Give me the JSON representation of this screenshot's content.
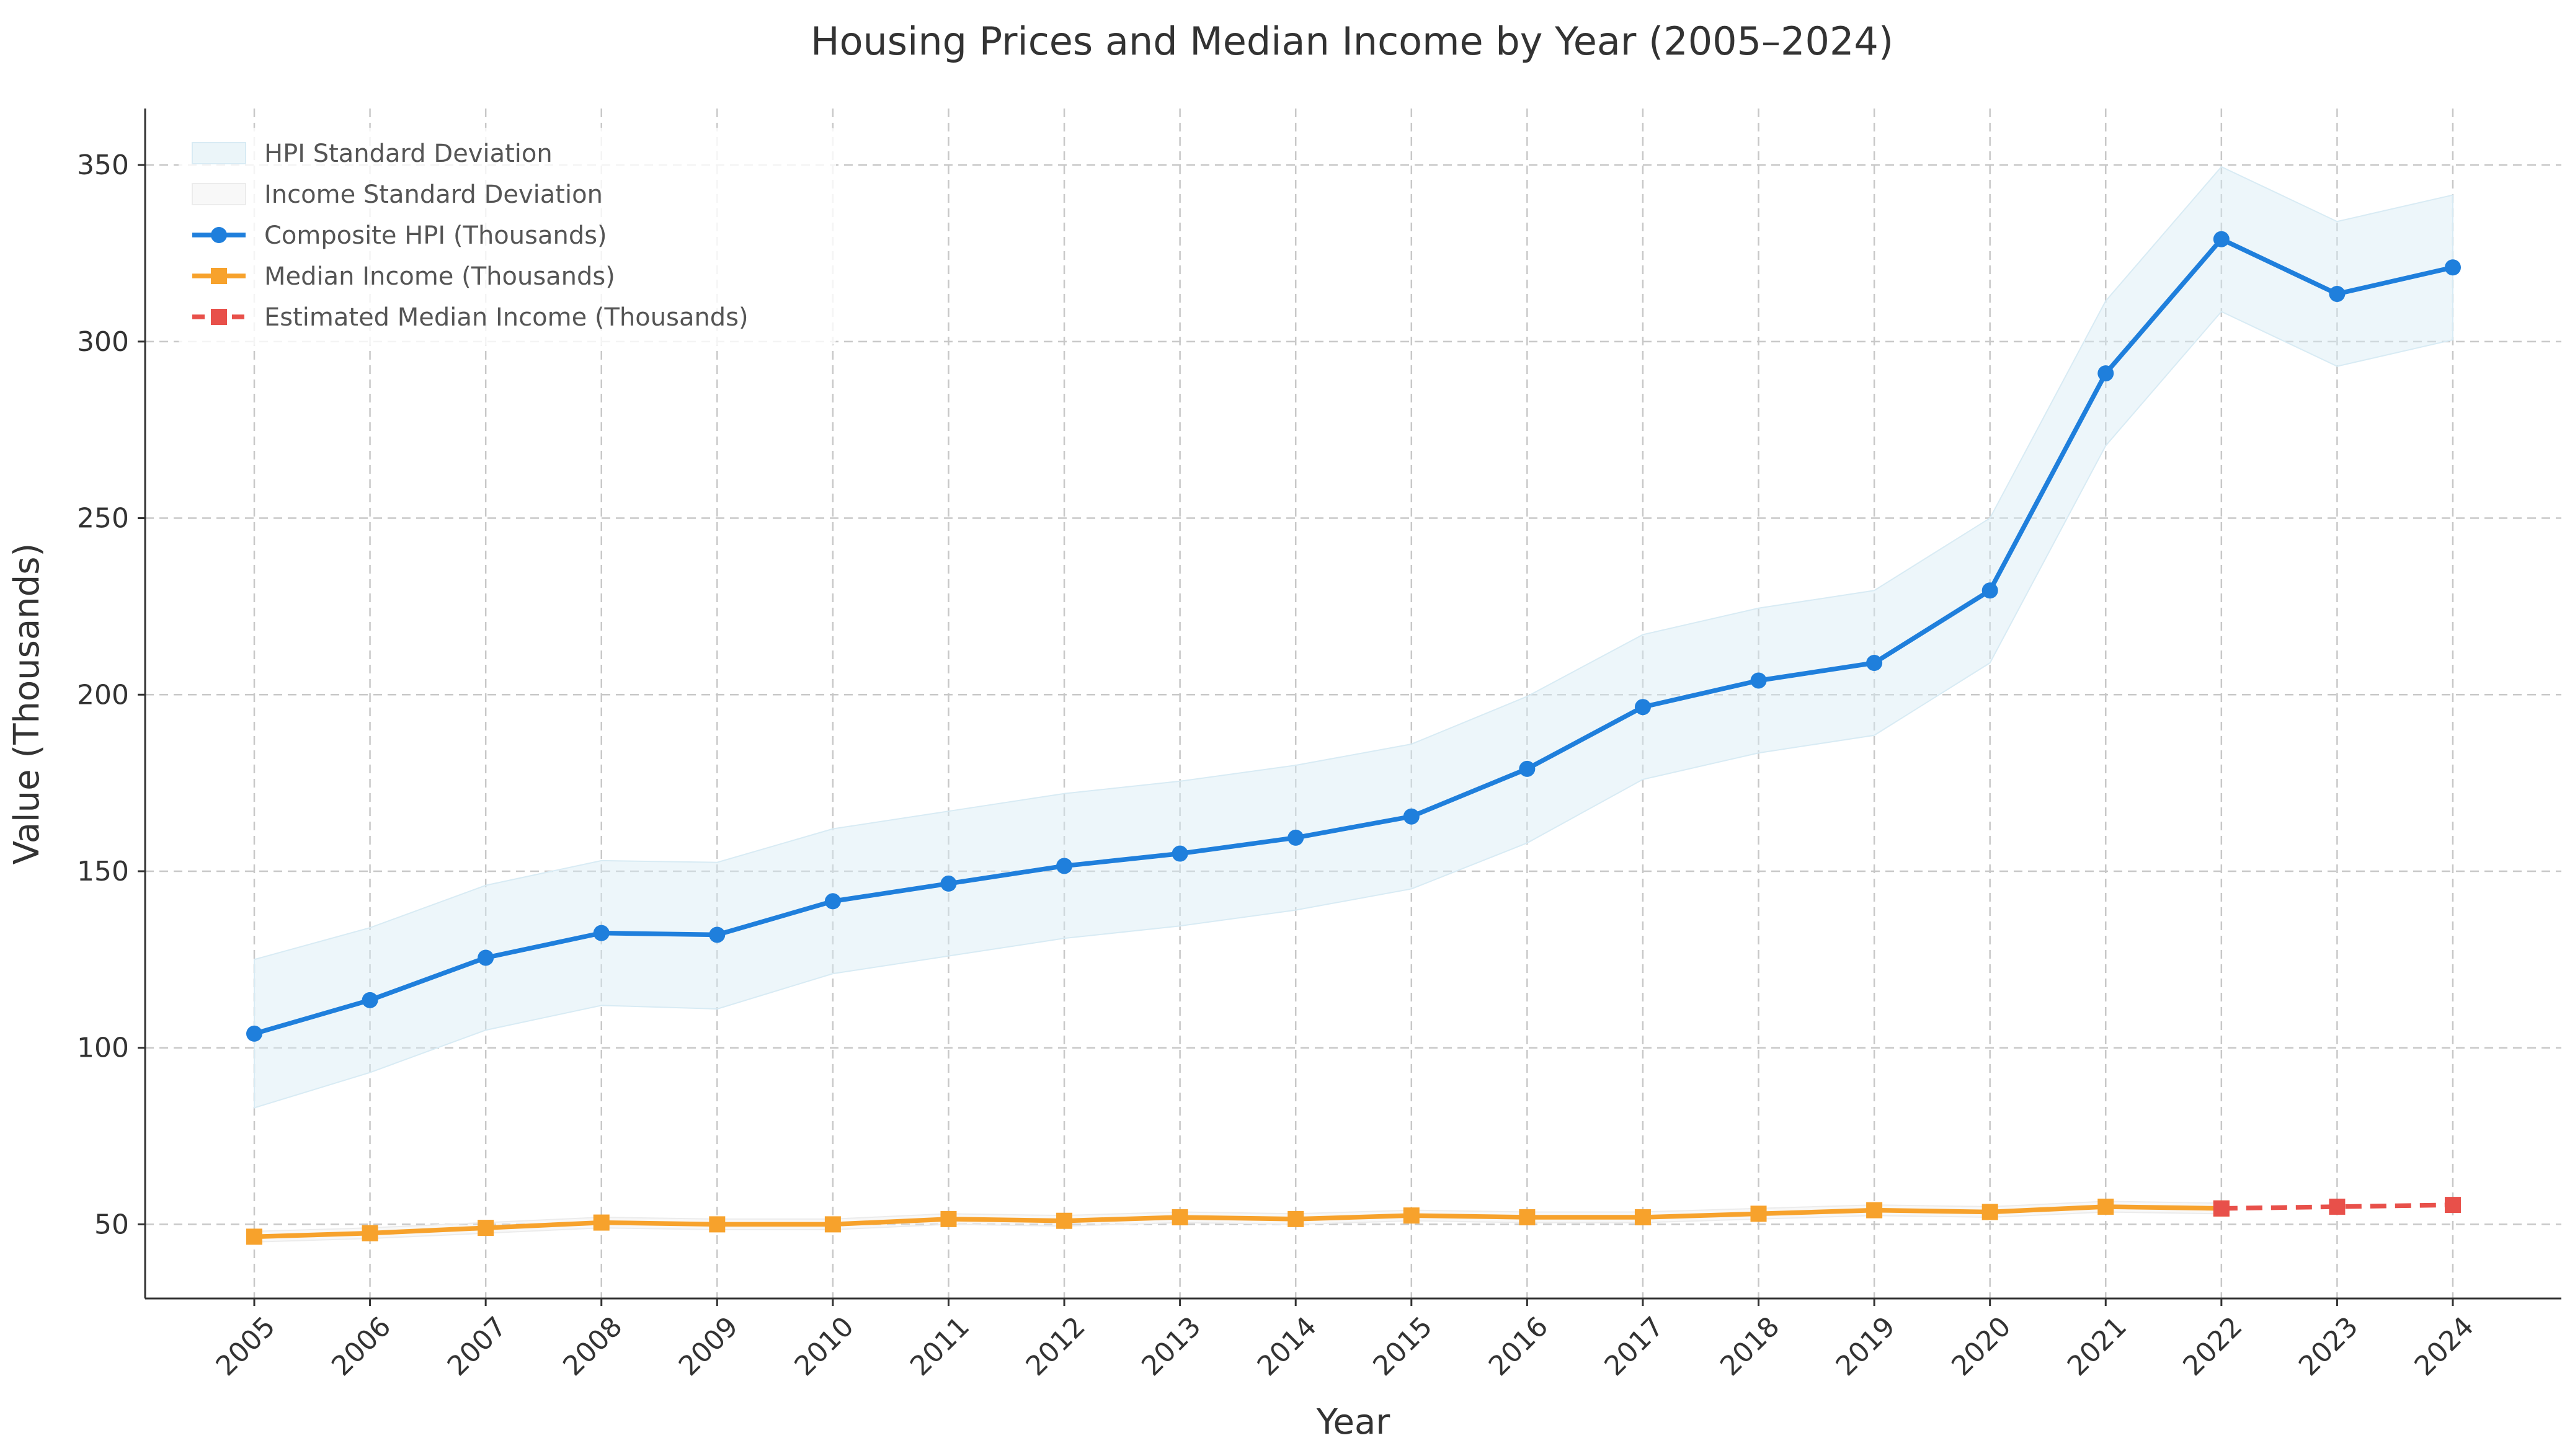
{
  "chart_data": {
    "type": "line",
    "title": "Housing Prices and Median Income by Year (2005–2024)",
    "xlabel": "Year",
    "ylabel": "Value (Thousands)",
    "x": [
      "2005",
      "2006",
      "2007",
      "2008",
      "2009",
      "2010",
      "2011",
      "2012",
      "2013",
      "2014",
      "2015",
      "2016",
      "2017",
      "2018",
      "2019",
      "2020",
      "2021",
      "2022",
      "2023",
      "2024"
    ],
    "ylim": [
      29,
      366
    ],
    "yticks": [
      50,
      100,
      150,
      200,
      250,
      300,
      350
    ],
    "grid": true,
    "legend_position": "top-left",
    "series": [
      {
        "name": "Composite HPI (Thousands)",
        "color": "#1f7fdc",
        "marker": "circle",
        "style": "solid",
        "x": [
          "2005",
          "2006",
          "2007",
          "2008",
          "2009",
          "2010",
          "2011",
          "2012",
          "2013",
          "2014",
          "2015",
          "2016",
          "2017",
          "2018",
          "2019",
          "2020",
          "2021",
          "2022",
          "2023",
          "2024"
        ],
        "values": [
          104,
          113.5,
          125.5,
          132.5,
          132,
          141.5,
          146.5,
          151.5,
          155,
          159.5,
          165.5,
          179,
          196.5,
          204,
          209,
          229.5,
          291,
          329,
          313.5,
          321
        ]
      },
      {
        "name": "Median Income (Thousands)",
        "color": "#f7a22c",
        "marker": "square",
        "style": "solid",
        "x": [
          "2005",
          "2006",
          "2007",
          "2008",
          "2009",
          "2010",
          "2011",
          "2012",
          "2013",
          "2014",
          "2015",
          "2016",
          "2017",
          "2018",
          "2019",
          "2020",
          "2021",
          "2022"
        ],
        "values": [
          46.5,
          47.5,
          49,
          50.5,
          50,
          50,
          51.5,
          51,
          52,
          51.5,
          52.5,
          52,
          52,
          53,
          54,
          53.5,
          55,
          54.5
        ]
      },
      {
        "name": "Estimated Median Income (Thousands)",
        "color": "#e8504a",
        "marker": "square",
        "style": "dashed",
        "x": [
          "2022",
          "2023",
          "2024"
        ],
        "values": [
          54.5,
          55,
          55.5
        ]
      }
    ],
    "bands": [
      {
        "name": "HPI Standard Deviation",
        "color": "#d8ebf4",
        "x": [
          "2005",
          "2006",
          "2007",
          "2008",
          "2009",
          "2010",
          "2011",
          "2012",
          "2013",
          "2014",
          "2015",
          "2016",
          "2017",
          "2018",
          "2019",
          "2020",
          "2021",
          "2022",
          "2023",
          "2024"
        ],
        "lower": [
          83,
          93,
          105,
          112,
          111,
          121,
          126,
          131,
          134.5,
          139,
          145,
          158,
          176,
          183.5,
          188.5,
          209,
          270.5,
          308.5,
          293,
          300.5
        ],
        "upper": [
          125,
          134,
          146,
          153,
          152.5,
          162,
          167,
          172,
          175.5,
          180,
          186,
          199.5,
          217,
          224.5,
          229.5,
          250,
          311.5,
          349.5,
          334,
          341.5
        ]
      },
      {
        "name": "Income Standard Deviation",
        "color": "#ececec",
        "x": [
          "2005",
          "2006",
          "2007",
          "2008",
          "2009",
          "2010",
          "2011",
          "2012",
          "2013",
          "2014",
          "2015",
          "2016",
          "2017",
          "2018",
          "2019",
          "2020",
          "2021",
          "2022"
        ],
        "lower": [
          45,
          46,
          47.5,
          49,
          48.5,
          48.5,
          50,
          49.5,
          50.5,
          50,
          51,
          50.5,
          50.5,
          51.5,
          52.5,
          52,
          53.5,
          53
        ],
        "upper": [
          48,
          49,
          50.5,
          52,
          51.5,
          51.5,
          53,
          52.5,
          53.5,
          53,
          54,
          53.5,
          53.5,
          54.5,
          55.5,
          55,
          56.5,
          56
        ]
      }
    ]
  }
}
